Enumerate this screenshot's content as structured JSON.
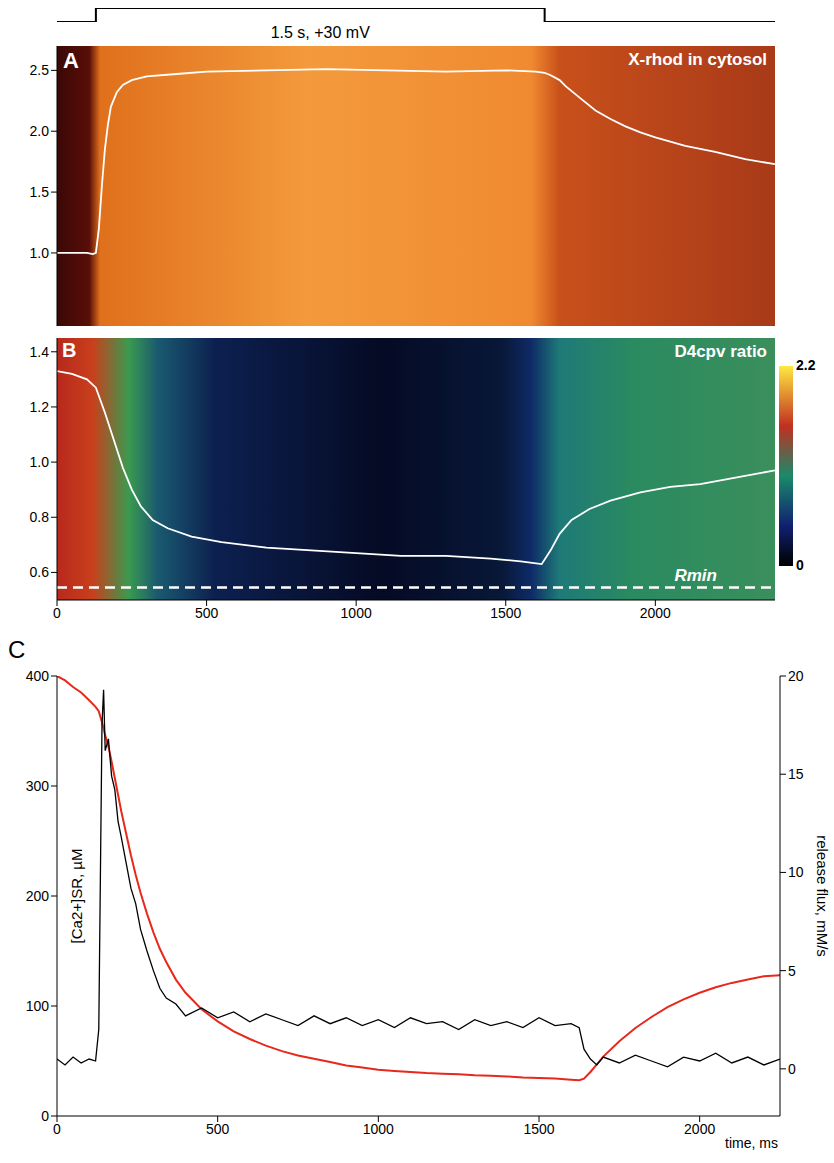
{
  "chart_data": [
    {
      "type": "line",
      "title": "1.5 s, +30 mV",
      "x": [
        0,
        130,
        130,
        1630,
        1630,
        2400
      ],
      "values": [
        0,
        0,
        1,
        1,
        0,
        0
      ],
      "color": "#000000",
      "xlim": [
        0,
        2400
      ],
      "ylim": [
        0,
        1
      ],
      "tick_labels": false
    },
    {
      "type": "line",
      "panel": "A",
      "title": "X-rhod in cytosol",
      "x": [
        0,
        100,
        120,
        130,
        140,
        150,
        160,
        170,
        180,
        200,
        220,
        250,
        300,
        400,
        500,
        700,
        900,
        1100,
        1300,
        1500,
        1600,
        1630,
        1650,
        1680,
        1700,
        1750,
        1800,
        1850,
        1900,
        1950,
        2000,
        2100,
        2200,
        2300,
        2400
      ],
      "values": [
        1.0,
        1.0,
        0.99,
        1.0,
        1.2,
        1.55,
        1.85,
        2.05,
        2.2,
        2.32,
        2.38,
        2.42,
        2.45,
        2.47,
        2.49,
        2.5,
        2.51,
        2.5,
        2.49,
        2.5,
        2.49,
        2.48,
        2.46,
        2.42,
        2.37,
        2.27,
        2.17,
        2.1,
        2.04,
        1.99,
        1.95,
        1.88,
        1.83,
        1.77,
        1.73
      ],
      "color": "#ffffff",
      "xlim": [
        0,
        2400
      ],
      "ylim": [
        0.4,
        2.7
      ],
      "yticks": [
        {
          "value": 1,
          "label": "1.0"
        },
        1.5,
        {
          "value": 2,
          "label": "2.0"
        },
        2.5
      ],
      "tick_labels": "y"
    },
    {
      "type": "line",
      "panel": "B",
      "title": "D4cpv ratio",
      "x": [
        0,
        50,
        100,
        130,
        160,
        190,
        220,
        250,
        280,
        320,
        370,
        450,
        550,
        700,
        850,
        1000,
        1150,
        1300,
        1450,
        1550,
        1620,
        1650,
        1680,
        1720,
        1780,
        1850,
        1950,
        2050,
        2150,
        2250,
        2350,
        2400
      ],
      "values": [
        1.33,
        1.32,
        1.3,
        1.27,
        1.18,
        1.08,
        0.98,
        0.9,
        0.84,
        0.79,
        0.76,
        0.73,
        0.71,
        0.69,
        0.68,
        0.67,
        0.66,
        0.66,
        0.65,
        0.64,
        0.63,
        0.68,
        0.74,
        0.79,
        0.83,
        0.86,
        0.89,
        0.91,
        0.92,
        0.94,
        0.96,
        0.97
      ],
      "color": "#ffffff",
      "xlim": [
        0,
        2400
      ],
      "xticks": [
        0,
        500,
        1000,
        1500,
        2000
      ],
      "ylim": [
        0.5,
        1.45
      ],
      "yticks": [
        0.6,
        0.8,
        {
          "value": 1,
          "label": "1.0"
        },
        1.2,
        1.4
      ],
      "annotations": [
        {
          "text": "Rmin",
          "y": 0.545
        }
      ],
      "colorbar": {
        "range": [
          0,
          2.2
        ],
        "ticks": [
          0,
          2.2
        ]
      }
    },
    {
      "type": "line",
      "panel": "C",
      "ylabel": "[Ca2+]SR, µM",
      "y2label": "release flux, mM/s",
      "xlabel": "time, ms",
      "x": [
        0,
        25,
        50,
        75,
        100,
        120,
        130,
        140,
        145,
        150,
        160,
        170,
        180,
        190,
        200,
        215,
        230,
        245,
        260,
        280,
        300,
        320,
        340,
        370,
        400,
        450,
        500,
        550,
        600,
        650,
        700,
        750,
        800,
        850,
        900,
        950,
        1000,
        1050,
        1100,
        1150,
        1200,
        1250,
        1300,
        1350,
        1400,
        1450,
        1500,
        1550,
        1600,
        1625,
        1640,
        1660,
        1680,
        1700,
        1750,
        1800,
        1850,
        1900,
        1950,
        2000,
        2050,
        2100,
        2150,
        2200,
        2250
      ],
      "series": [
        {
          "color": "#e8281c",
          "axis": "y",
          "values": [
            400,
            396,
            390,
            385,
            378,
            372,
            368,
            358,
            352,
            346,
            336,
            322,
            307,
            292,
            277,
            257,
            237,
            219,
            203,
            184,
            167,
            152,
            140,
            124,
            112,
            97,
            86,
            77,
            70,
            64,
            59,
            55,
            52,
            49,
            46,
            44,
            42,
            41,
            40,
            39,
            38.5,
            38,
            37,
            36.5,
            36,
            35,
            34.5,
            34,
            33,
            32.5,
            34,
            40,
            47,
            54,
            68,
            80,
            90,
            99,
            106,
            112,
            117,
            121,
            124,
            127,
            128
          ]
        },
        {
          "color": "#000000",
          "axis": "y2",
          "values": [
            0.5,
            0.2,
            0.6,
            0.3,
            0.5,
            0.4,
            2.0,
            17.5,
            19.3,
            16.2,
            16.8,
            14.9,
            14.2,
            12.6,
            11.8,
            10.5,
            9.2,
            8.4,
            7.1,
            6.0,
            5.0,
            4.1,
            3.6,
            3.3,
            2.7,
            3.1,
            2.6,
            2.9,
            2.4,
            2.8,
            2.5,
            2.2,
            2.7,
            2.3,
            2.6,
            2.2,
            2.5,
            2.1,
            2.6,
            2.3,
            2.4,
            2.0,
            2.5,
            2.2,
            2.4,
            2.1,
            2.6,
            2.2,
            2.3,
            2.1,
            1.0,
            0.5,
            0.2,
            0.6,
            0.3,
            0.7,
            0.4,
            0.1,
            0.6,
            0.4,
            0.8,
            0.3,
            0.6,
            0.2,
            0.5
          ]
        }
      ],
      "xlim": [
        0,
        2250
      ],
      "xticks": [
        0,
        500,
        1000,
        1500,
        2000
      ],
      "ylim": [
        0,
        400
      ],
      "yticks": [
        0,
        100,
        200,
        300,
        400
      ],
      "y2lim": [
        -2.4,
        20
      ],
      "y2ticks": [
        0,
        5,
        10,
        15,
        20
      ]
    }
  ]
}
